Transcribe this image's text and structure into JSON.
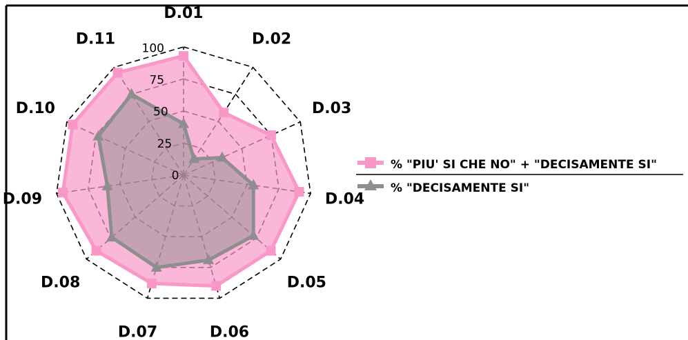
{
  "chart_data": {
    "type": "radar",
    "categories": [
      "D.01",
      "D.02",
      "D.03",
      "D.04",
      "D.05",
      "D.06",
      "D.07",
      "D.08",
      "D.09",
      "D.10",
      "D.11"
    ],
    "radial_ticks": [
      "0",
      "25",
      "50",
      "75",
      "100"
    ],
    "rlim": [
      0,
      100
    ],
    "grid": true,
    "legend_position": "right",
    "series": [
      {
        "name": "% \"PIU' SI CHE NO\" + \"DECISAMENTE SI\"",
        "values": [
          93,
          58,
          75,
          91,
          90,
          90,
          88,
          90,
          95,
          95,
          95
        ],
        "color": "#f998c8",
        "fill": "#f998c8",
        "marker": "square"
      },
      {
        "name": "% \"DECISAMENTE SI\"",
        "values": [
          40,
          15,
          33,
          55,
          72,
          69,
          75,
          74,
          60,
          73,
          75
        ],
        "color": "#8e8e8e",
        "fill": "#8e8e8e",
        "marker": "triangle"
      }
    ]
  }
}
